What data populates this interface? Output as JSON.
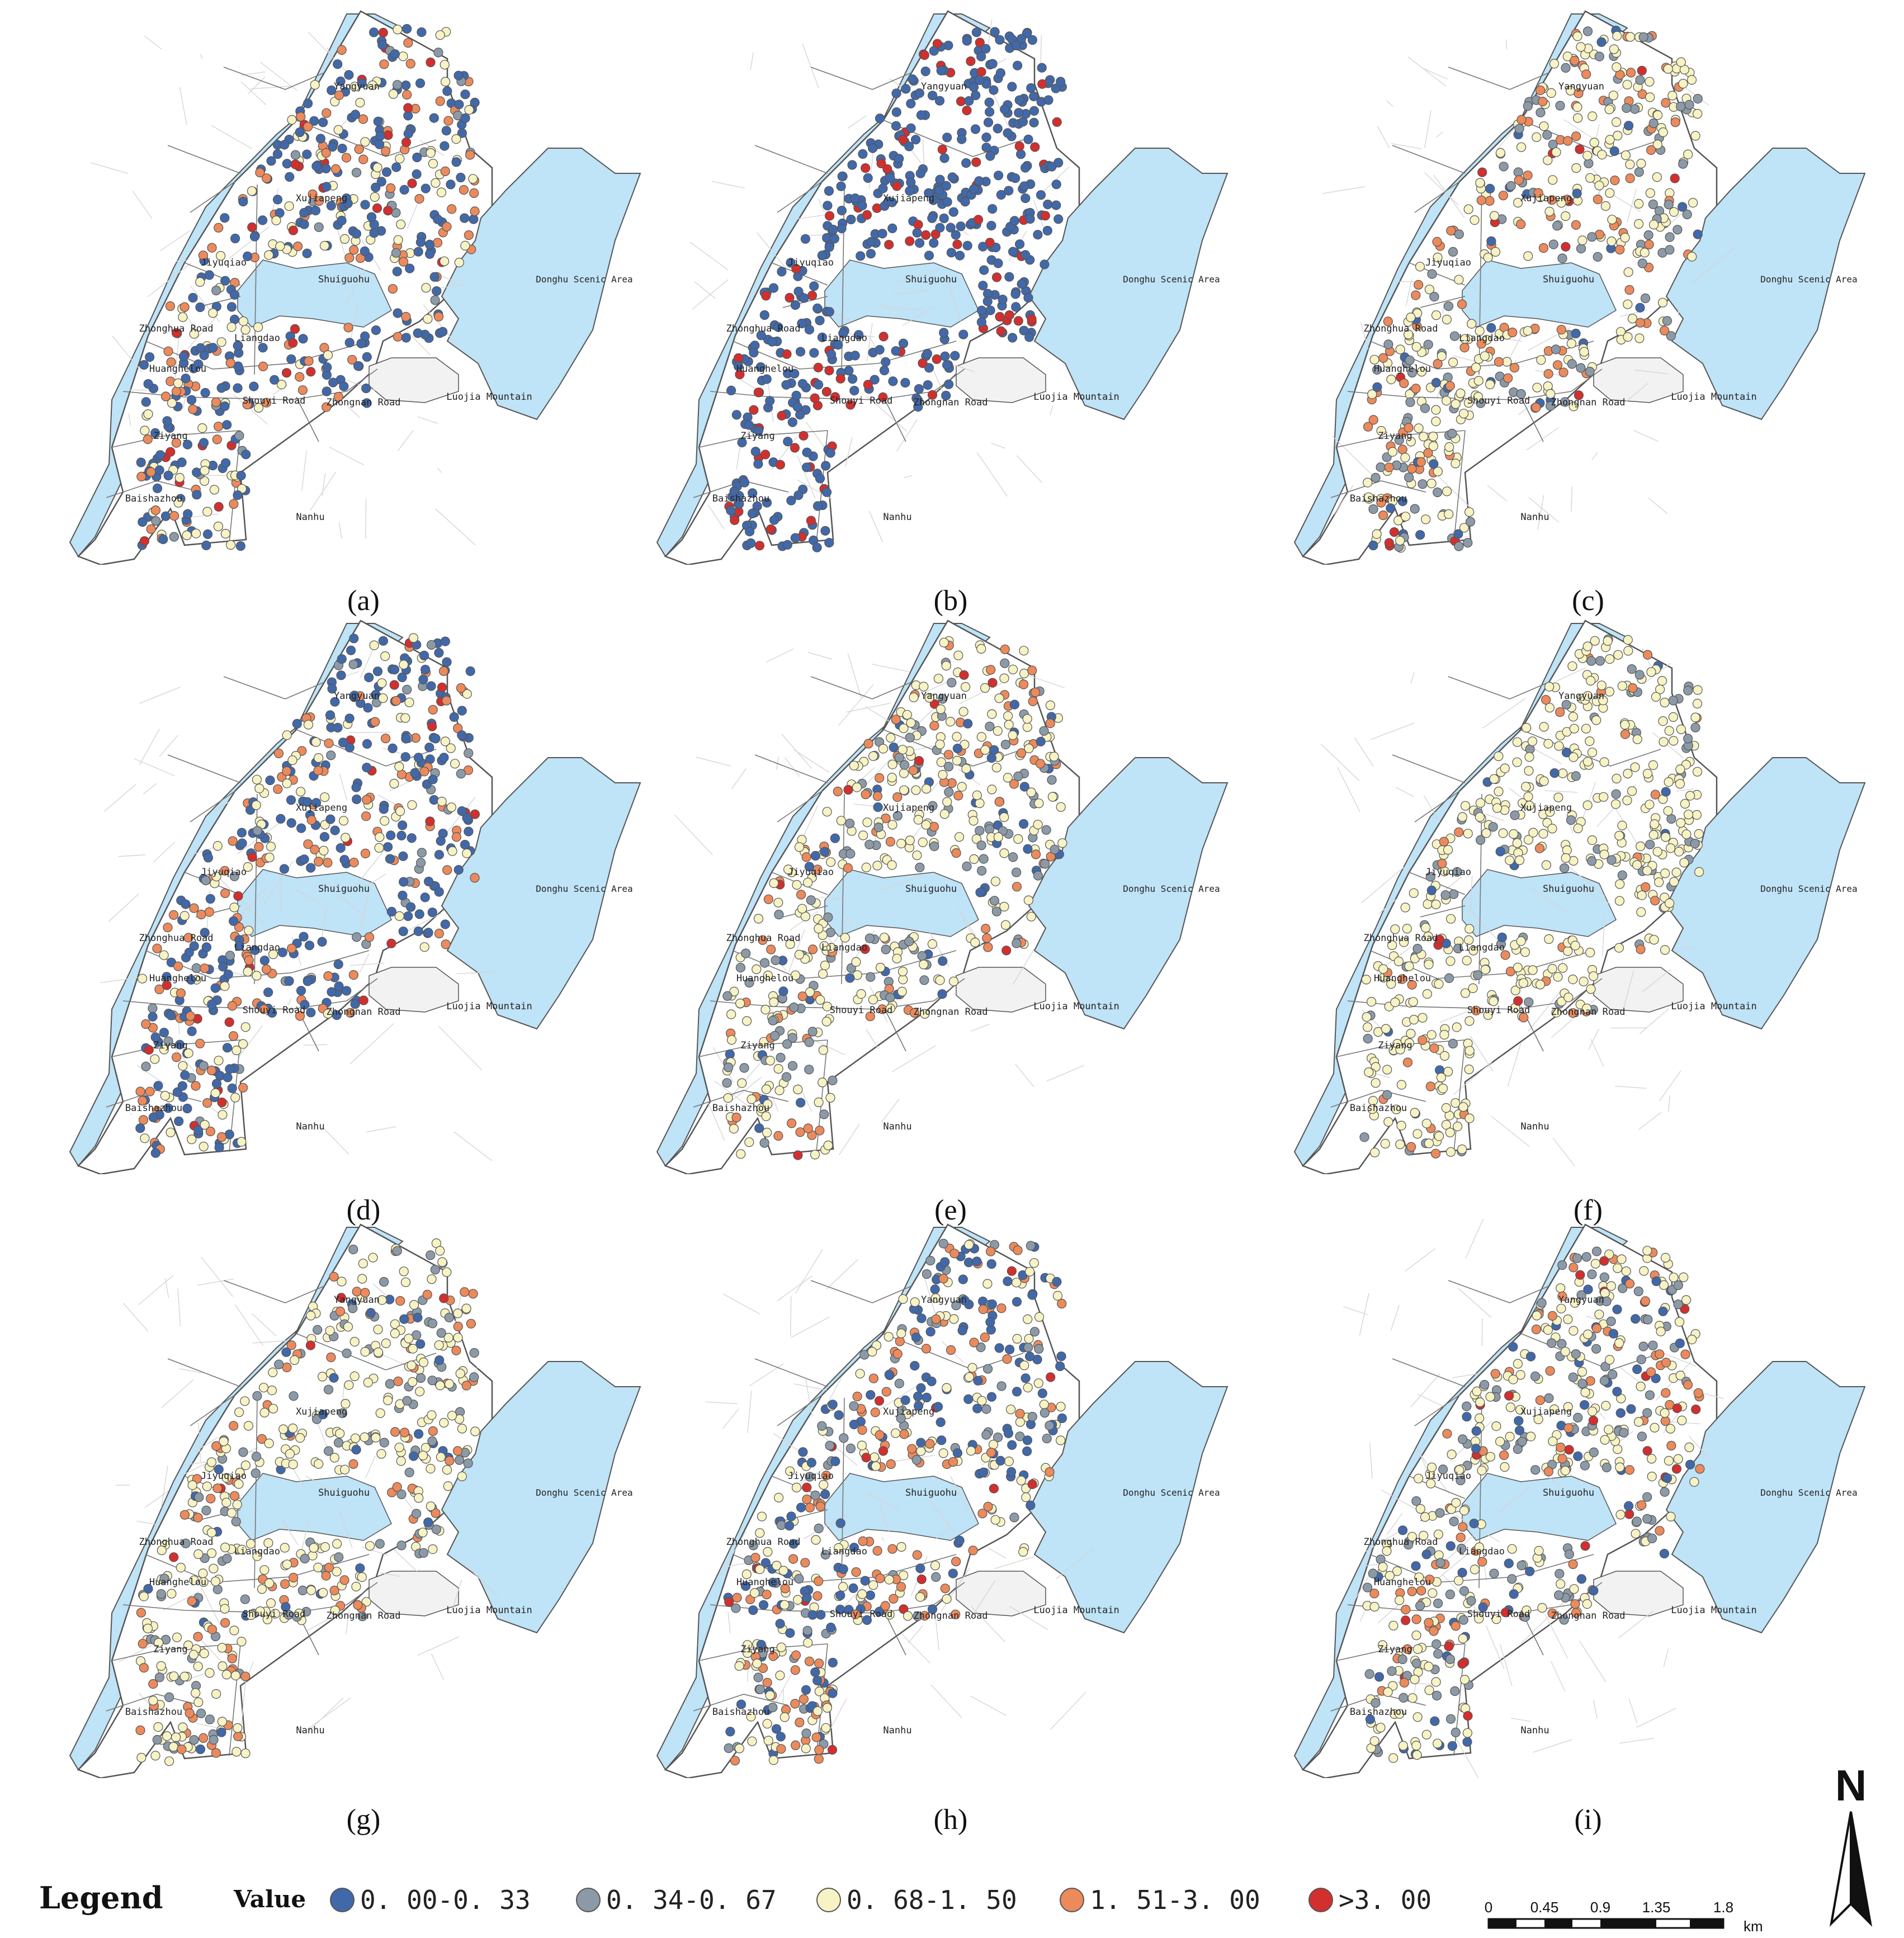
{
  "panels": [
    {
      "label": "(a)"
    },
    {
      "label": "(b)"
    },
    {
      "label": "(c)"
    },
    {
      "label": "(d)"
    },
    {
      "label": "(e)"
    },
    {
      "label": "(f)"
    },
    {
      "label": "(g)"
    },
    {
      "label": "(h)"
    },
    {
      "label": "(i)"
    }
  ],
  "map_labels": {
    "yangyuan": "Yangyuan",
    "xujiapeng": "Xujiapeng",
    "jiyuqiao": "Jiyuqiao",
    "shuiguohu": "Shuiguohu",
    "donghu": "Donghu Scenic Area",
    "zhonghua": "Zhonghua Road",
    "liangdao": "Liangdao",
    "huanghelou": "Huanghelou",
    "shouyi": "Shouyi Road",
    "zhongnan": "Zhongnan Road",
    "luojia": "Luojia Mountain",
    "ziyang": "Ziyang",
    "baishazhou": "Baishazhou",
    "nanhu": "Nanhu"
  },
  "legend": {
    "title": "Legend",
    "value_title": "Value",
    "classes": [
      {
        "label": "0. 00-0. 33",
        "color": "#4169aa"
      },
      {
        "label": "0. 34-0. 67",
        "color": "#8c9aa8"
      },
      {
        "label": "0. 68-1. 50",
        "color": "#f7f3c4"
      },
      {
        "label": "1. 51-3. 00",
        "color": "#ec8a5c"
      },
      {
        "label": ">3. 00",
        "color": "#d32f2f"
      }
    ]
  },
  "scale_bar": {
    "ticks": [
      "0",
      "0.45",
      "0.9",
      "1.35",
      "1.8"
    ],
    "unit": "km"
  },
  "north_arrow": {
    "label": "N"
  },
  "colors": {
    "water": "#bfe3f7",
    "boundary": "#555555",
    "roads": "#d6d6d6"
  },
  "class_weights": [
    [
      0.45,
      0.05,
      0.22,
      0.22,
      0.06
    ],
    [
      0.82,
      0.0,
      0.0,
      0.0,
      0.18
    ],
    [
      0.06,
      0.2,
      0.48,
      0.24,
      0.02
    ],
    [
      0.45,
      0.06,
      0.22,
      0.21,
      0.06
    ],
    [
      0.08,
      0.24,
      0.48,
      0.18,
      0.02
    ],
    [
      0.03,
      0.13,
      0.77,
      0.06,
      0.01
    ],
    [
      0.05,
      0.24,
      0.52,
      0.18,
      0.01
    ],
    [
      0.28,
      0.14,
      0.28,
      0.28,
      0.02
    ],
    [
      0.12,
      0.22,
      0.44,
      0.17,
      0.05
    ]
  ]
}
